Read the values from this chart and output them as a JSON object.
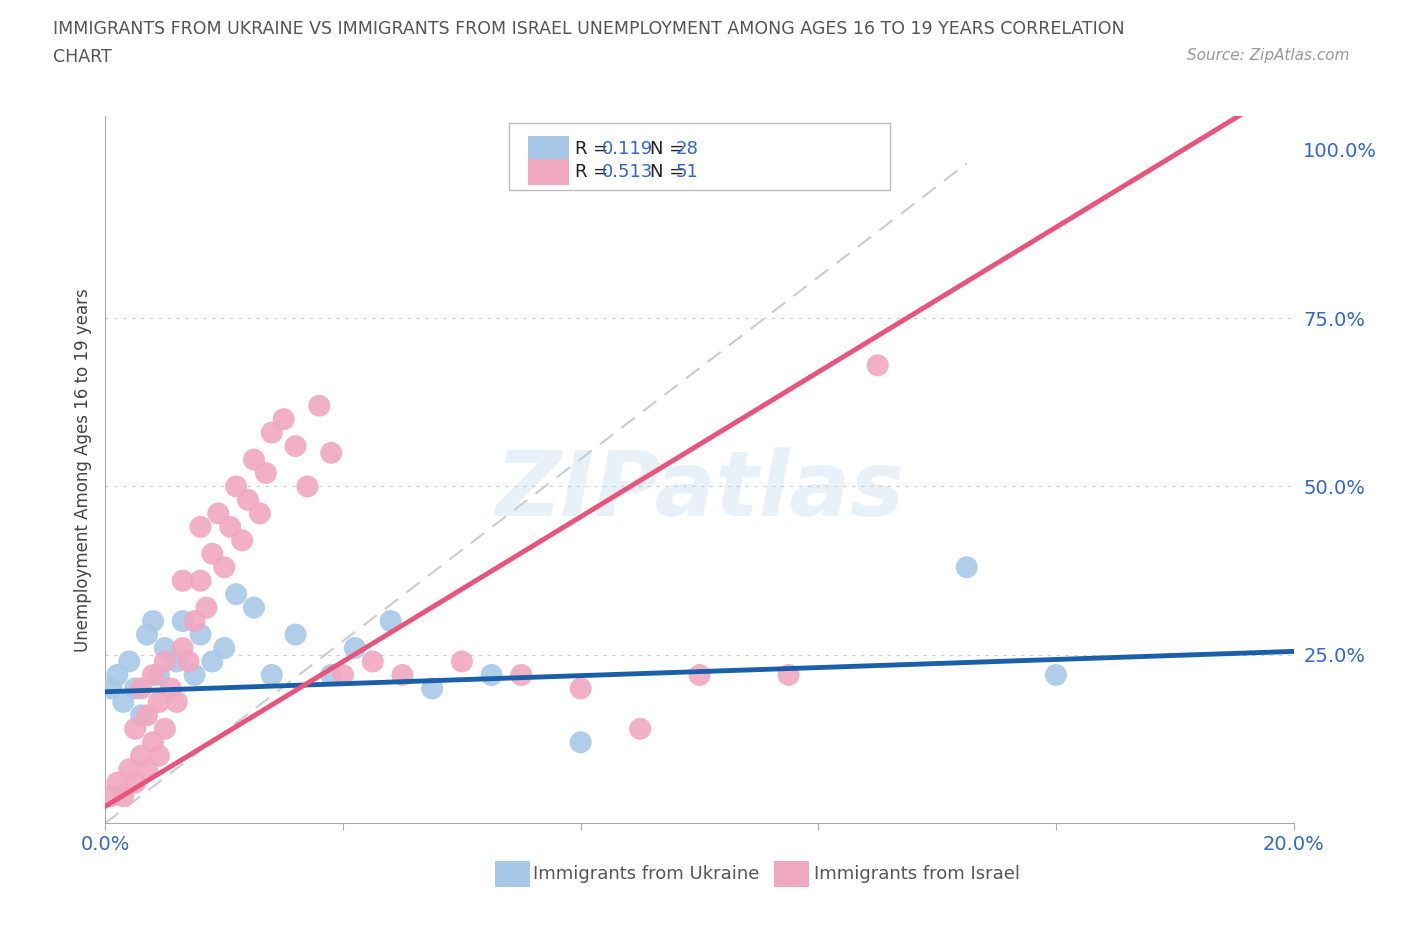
{
  "title_line1": "IMMIGRANTS FROM UKRAINE VS IMMIGRANTS FROM ISRAEL UNEMPLOYMENT AMONG AGES 16 TO 19 YEARS CORRELATION",
  "title_line2": "CHART",
  "source": "Source: ZipAtlas.com",
  "ylabel": "Unemployment Among Ages 16 to 19 years",
  "xlim": [
    0.0,
    0.2
  ],
  "ylim": [
    0.0,
    1.05
  ],
  "ukraine_color": "#a8c8e8",
  "israel_color": "#f0a8c0",
  "ukraine_line_color": "#1a5fa8",
  "israel_line_color": "#e8547a",
  "diag_line_color": "#cccccc",
  "watermark_text": "ZIPatlas",
  "legend_R_ukraine": "0.119",
  "legend_N_ukraine": "28",
  "legend_R_israel": "0.513",
  "legend_N_israel": "51",
  "ukraine_x": [
    0.001,
    0.002,
    0.003,
    0.004,
    0.005,
    0.006,
    0.007,
    0.008,
    0.009,
    0.01,
    0.012,
    0.013,
    0.015,
    0.016,
    0.018,
    0.02,
    0.022,
    0.025,
    0.028,
    0.032,
    0.038,
    0.042,
    0.048,
    0.055,
    0.065,
    0.08,
    0.145,
    0.16
  ],
  "ukraine_y": [
    0.2,
    0.22,
    0.18,
    0.24,
    0.2,
    0.16,
    0.28,
    0.3,
    0.22,
    0.26,
    0.24,
    0.3,
    0.22,
    0.28,
    0.24,
    0.26,
    0.34,
    0.32,
    0.22,
    0.28,
    0.22,
    0.26,
    0.3,
    0.2,
    0.22,
    0.12,
    0.38,
    0.22
  ],
  "israel_x": [
    0.001,
    0.002,
    0.003,
    0.004,
    0.005,
    0.005,
    0.006,
    0.006,
    0.007,
    0.007,
    0.008,
    0.008,
    0.009,
    0.009,
    0.01,
    0.01,
    0.011,
    0.012,
    0.013,
    0.013,
    0.014,
    0.015,
    0.016,
    0.016,
    0.017,
    0.018,
    0.019,
    0.02,
    0.021,
    0.022,
    0.023,
    0.024,
    0.025,
    0.026,
    0.027,
    0.028,
    0.03,
    0.032,
    0.034,
    0.036,
    0.038,
    0.04,
    0.045,
    0.05,
    0.06,
    0.07,
    0.08,
    0.09,
    0.1,
    0.115,
    0.13
  ],
  "israel_y": [
    0.04,
    0.06,
    0.04,
    0.08,
    0.06,
    0.14,
    0.1,
    0.2,
    0.08,
    0.16,
    0.12,
    0.22,
    0.1,
    0.18,
    0.14,
    0.24,
    0.2,
    0.18,
    0.26,
    0.36,
    0.24,
    0.3,
    0.36,
    0.44,
    0.32,
    0.4,
    0.46,
    0.38,
    0.44,
    0.5,
    0.42,
    0.48,
    0.54,
    0.46,
    0.52,
    0.58,
    0.6,
    0.56,
    0.5,
    0.62,
    0.55,
    0.22,
    0.24,
    0.22,
    0.24,
    0.22,
    0.2,
    0.14,
    0.22,
    0.22,
    0.68
  ]
}
